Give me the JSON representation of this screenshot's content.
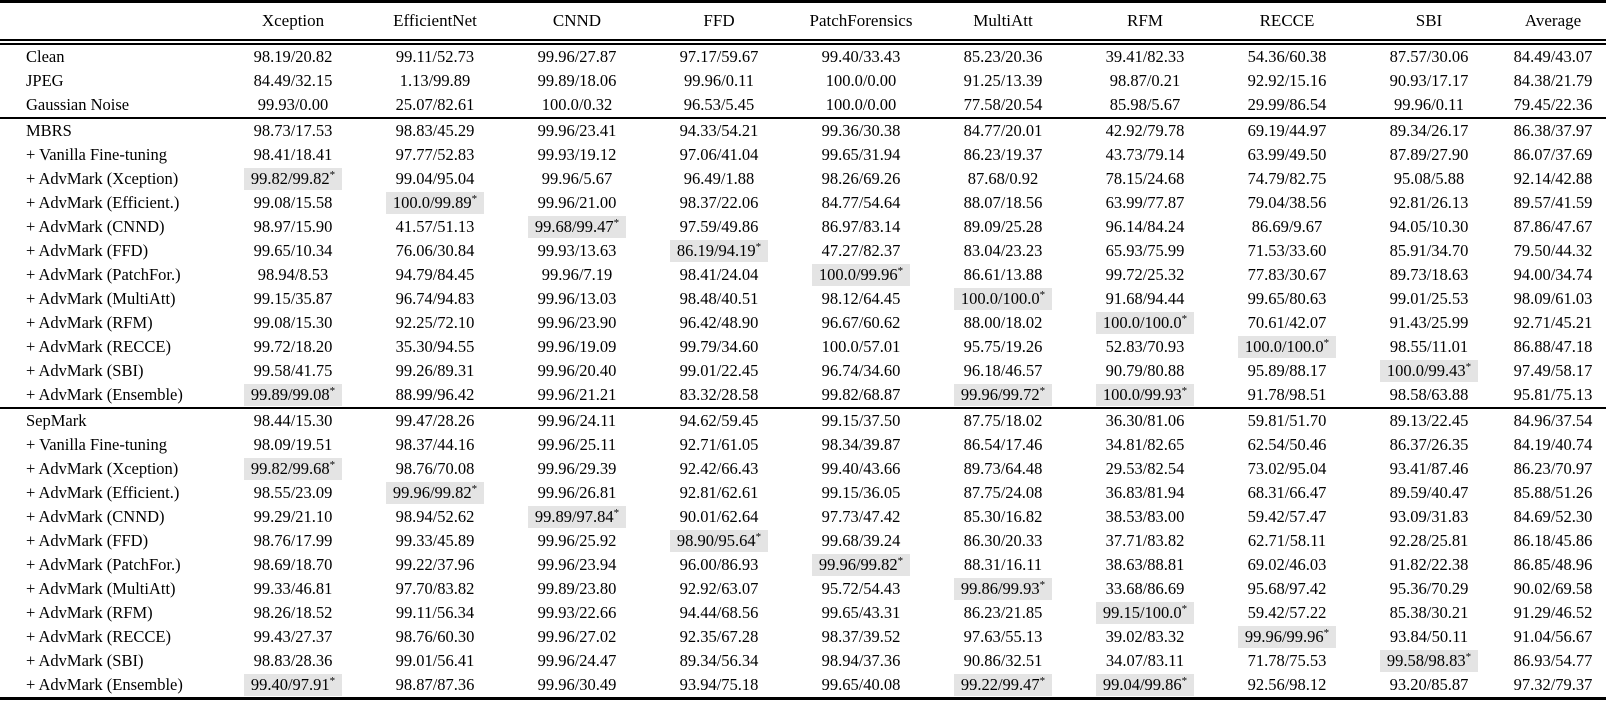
{
  "table": {
    "highlight_color": "#e4e4e4",
    "star_marker": "*",
    "label_header": "",
    "columns": [
      "Xception",
      "EfficientNet",
      "CNND",
      "FFD",
      "PatchForensics",
      "MultiAtt",
      "RFM",
      "RECCE",
      "SBI",
      "Average"
    ],
    "groups": [
      {
        "rows": [
          {
            "label": "Clean",
            "cells": [
              "98.19/20.82",
              "99.11/52.73",
              "99.96/27.87",
              "97.17/59.67",
              "99.40/33.43",
              "85.23/20.36",
              "39.41/82.33",
              "54.36/60.38",
              "87.57/30.06",
              "84.49/43.07"
            ]
          },
          {
            "label": "JPEG",
            "cells": [
              "84.49/32.15",
              "1.13/99.89",
              "99.89/18.06",
              "99.96/0.11",
              "100.0/0.00",
              "91.25/13.39",
              "98.87/0.21",
              "92.92/15.16",
              "90.93/17.17",
              "84.38/21.79"
            ]
          },
          {
            "label": "Gaussian Noise",
            "cells": [
              "99.93/0.00",
              "25.07/82.61",
              "100.0/0.32",
              "96.53/5.45",
              "100.0/0.00",
              "77.58/20.54",
              "85.98/5.67",
              "29.99/86.54",
              "99.96/0.11",
              "79.45/22.36"
            ]
          }
        ]
      },
      {
        "rows": [
          {
            "label": "MBRS",
            "cells": [
              "98.73/17.53",
              "98.83/45.29",
              "99.96/23.41",
              "94.33/54.21",
              "99.36/30.38",
              "84.77/20.01",
              "42.92/79.78",
              "69.19/44.97",
              "89.34/26.17",
              "86.38/37.97"
            ]
          },
          {
            "label": "+ Vanilla Fine-tuning",
            "cells": [
              "98.41/18.41",
              "97.77/52.83",
              "99.93/19.12",
              "97.06/41.04",
              "99.65/31.94",
              "86.23/19.37",
              "43.73/79.14",
              "63.99/49.50",
              "87.89/27.90",
              "86.07/37.69"
            ]
          },
          {
            "label": "+ AdvMark (Xception)",
            "cells": [
              "99.82/99.82*",
              "99.04/95.04",
              "99.96/5.67",
              "96.49/1.88",
              "98.26/69.26",
              "87.68/0.92",
              "78.15/24.68",
              "74.79/82.75",
              "95.08/5.88",
              "92.14/42.88"
            ]
          },
          {
            "label": "+ AdvMark (Efficient.)",
            "cells": [
              "99.08/15.58",
              "100.0/99.89*",
              "99.96/21.00",
              "98.37/22.06",
              "84.77/54.64",
              "88.07/18.56",
              "63.99/77.87",
              "79.04/38.56",
              "92.81/26.13",
              "89.57/41.59"
            ]
          },
          {
            "label": "+ AdvMark (CNND)",
            "cells": [
              "98.97/15.90",
              "41.57/51.13",
              "99.68/99.47*",
              "97.59/49.86",
              "86.97/83.14",
              "89.09/25.28",
              "96.14/84.24",
              "86.69/9.67",
              "94.05/10.30",
              "87.86/47.67"
            ]
          },
          {
            "label": "+ AdvMark (FFD)",
            "cells": [
              "99.65/10.34",
              "76.06/30.84",
              "99.93/13.63",
              "86.19/94.19*",
              "47.27/82.37",
              "83.04/23.23",
              "65.93/75.99",
              "71.53/33.60",
              "85.91/34.70",
              "79.50/44.32"
            ]
          },
          {
            "label": "+ AdvMark (PatchFor.)",
            "cells": [
              "98.94/8.53",
              "94.79/84.45",
              "99.96/7.19",
              "98.41/24.04",
              "100.0/99.96*",
              "86.61/13.88",
              "99.72/25.32",
              "77.83/30.67",
              "89.73/18.63",
              "94.00/34.74"
            ]
          },
          {
            "label": "+ AdvMark (MultiAtt)",
            "cells": [
              "99.15/35.87",
              "96.74/94.83",
              "99.96/13.03",
              "98.48/40.51",
              "98.12/64.45",
              "100.0/100.0*",
              "91.68/94.44",
              "99.65/80.63",
              "99.01/25.53",
              "98.09/61.03"
            ]
          },
          {
            "label": "+ AdvMark (RFM)",
            "cells": [
              "99.08/15.30",
              "92.25/72.10",
              "99.96/23.90",
              "96.42/48.90",
              "96.67/60.62",
              "88.00/18.02",
              "100.0/100.0*",
              "70.61/42.07",
              "91.43/25.99",
              "92.71/45.21"
            ]
          },
          {
            "label": "+ AdvMark (RECCE)",
            "cells": [
              "99.72/18.20",
              "35.30/94.55",
              "99.96/19.09",
              "99.79/34.60",
              "100.0/57.01",
              "95.75/19.26",
              "52.83/70.93",
              "100.0/100.0*",
              "98.55/11.01",
              "86.88/47.18"
            ]
          },
          {
            "label": "+ AdvMark (SBI)",
            "cells": [
              "99.58/41.75",
              "99.26/89.31",
              "99.96/20.40",
              "99.01/22.45",
              "96.74/34.60",
              "96.18/46.57",
              "90.79/80.88",
              "95.89/88.17",
              "100.0/99.43*",
              "97.49/58.17"
            ]
          },
          {
            "label": "+ AdvMark (Ensemble)",
            "cells": [
              "99.89/99.08*",
              "88.99/96.42",
              "99.96/21.21",
              "83.32/28.58",
              "99.82/68.87",
              "99.96/99.72*",
              "100.0/99.93*",
              "91.78/98.51",
              "98.58/63.88",
              "95.81/75.13"
            ]
          }
        ]
      },
      {
        "rows": [
          {
            "label": "SepMark",
            "cells": [
              "98.44/15.30",
              "99.47/28.26",
              "99.96/24.11",
              "94.62/59.45",
              "99.15/37.50",
              "87.75/18.02",
              "36.30/81.06",
              "59.81/51.70",
              "89.13/22.45",
              "84.96/37.54"
            ]
          },
          {
            "label": "+ Vanilla Fine-tuning",
            "cells": [
              "98.09/19.51",
              "98.37/44.16",
              "99.96/25.11",
              "92.71/61.05",
              "98.34/39.87",
              "86.54/17.46",
              "34.81/82.65",
              "62.54/50.46",
              "86.37/26.35",
              "84.19/40.74"
            ]
          },
          {
            "label": "+ AdvMark (Xception)",
            "cells": [
              "99.82/99.68*",
              "98.76/70.08",
              "99.96/29.39",
              "92.42/66.43",
              "99.40/43.66",
              "89.73/64.48",
              "29.53/82.54",
              "73.02/95.04",
              "93.41/87.46",
              "86.23/70.97"
            ]
          },
          {
            "label": "+ AdvMark (Efficient.)",
            "cells": [
              "98.55/23.09",
              "99.96/99.82*",
              "99.96/26.81",
              "92.81/62.61",
              "99.15/36.05",
              "87.75/24.08",
              "36.83/81.94",
              "68.31/66.47",
              "89.59/40.47",
              "85.88/51.26"
            ]
          },
          {
            "label": "+ AdvMark (CNND)",
            "cells": [
              "99.29/21.10",
              "98.94/52.62",
              "99.89/97.84*",
              "90.01/62.64",
              "97.73/47.42",
              "85.30/16.82",
              "38.53/83.00",
              "59.42/57.47",
              "93.09/31.83",
              "84.69/52.30"
            ]
          },
          {
            "label": "+ AdvMark (FFD)",
            "cells": [
              "98.76/17.99",
              "99.33/45.89",
              "99.96/25.92",
              "98.90/95.64*",
              "99.68/39.24",
              "86.30/20.33",
              "37.71/83.82",
              "62.71/58.11",
              "92.28/25.81",
              "86.18/45.86"
            ]
          },
          {
            "label": "+ AdvMark (PatchFor.)",
            "cells": [
              "98.69/18.70",
              "99.22/37.96",
              "99.96/23.94",
              "96.00/86.93",
              "99.96/99.82*",
              "88.31/16.11",
              "38.63/88.81",
              "69.02/46.03",
              "91.82/22.38",
              "86.85/48.96"
            ]
          },
          {
            "label": "+ AdvMark (MultiAtt)",
            "cells": [
              "99.33/46.81",
              "97.70/83.82",
              "99.89/23.80",
              "92.92/63.07",
              "95.72/54.43",
              "99.86/99.93*",
              "33.68/86.69",
              "95.68/97.42",
              "95.36/70.29",
              "90.02/69.58"
            ]
          },
          {
            "label": "+ AdvMark (RFM)",
            "cells": [
              "98.26/18.52",
              "99.11/56.34",
              "99.93/22.66",
              "94.44/68.56",
              "99.65/43.31",
              "86.23/21.85",
              "99.15/100.0*",
              "59.42/57.22",
              "85.38/30.21",
              "91.29/46.52"
            ]
          },
          {
            "label": "+ AdvMark (RECCE)",
            "cells": [
              "99.43/27.37",
              "98.76/60.30",
              "99.96/27.02",
              "92.35/67.28",
              "98.37/39.52",
              "97.63/55.13",
              "39.02/83.32",
              "99.96/99.96*",
              "93.84/50.11",
              "91.04/56.67"
            ]
          },
          {
            "label": "+ AdvMark (SBI)",
            "cells": [
              "98.83/28.36",
              "99.01/56.41",
              "99.96/24.47",
              "89.34/56.34",
              "98.94/37.36",
              "90.86/32.51",
              "34.07/83.11",
              "71.78/75.53",
              "99.58/98.83*",
              "86.93/54.77"
            ]
          },
          {
            "label": "+ AdvMark (Ensemble)",
            "cells": [
              "99.40/97.91*",
              "98.87/87.36",
              "99.96/30.49",
              "93.94/75.18",
              "99.65/40.08",
              "99.22/99.47*",
              "99.04/99.86*",
              "92.56/98.12",
              "93.20/85.87",
              "97.32/79.37"
            ]
          }
        ]
      }
    ]
  }
}
